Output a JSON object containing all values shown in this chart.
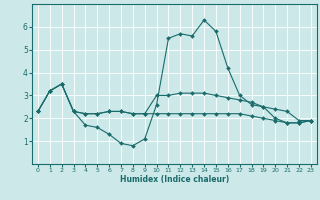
{
  "xlabel": "Humidex (Indice chaleur)",
  "background_color": "#cce8e8",
  "grid_color": "#ffffff",
  "line_color": "#1a6b6b",
  "x": [
    0,
    1,
    2,
    3,
    4,
    5,
    6,
    7,
    8,
    9,
    10,
    11,
    12,
    13,
    14,
    15,
    16,
    17,
    18,
    19,
    20,
    21,
    22,
    23
  ],
  "line1": [
    2.3,
    3.2,
    3.5,
    2.3,
    1.7,
    1.6,
    1.3,
    0.9,
    0.8,
    1.1,
    2.6,
    5.5,
    5.7,
    5.6,
    6.3,
    5.8,
    4.2,
    3.0,
    2.6,
    2.5,
    2.0,
    1.8,
    1.8,
    1.9
  ],
  "line2": [
    2.3,
    3.2,
    3.5,
    2.3,
    2.2,
    2.2,
    2.3,
    2.3,
    2.2,
    2.2,
    3.0,
    3.0,
    3.1,
    3.1,
    3.1,
    3.0,
    2.9,
    2.8,
    2.7,
    2.5,
    2.4,
    2.3,
    1.9,
    1.9
  ],
  "line3": [
    2.3,
    3.2,
    3.5,
    2.3,
    2.2,
    2.2,
    2.3,
    2.3,
    2.2,
    2.2,
    2.2,
    2.2,
    2.2,
    2.2,
    2.2,
    2.2,
    2.2,
    2.2,
    2.1,
    2.0,
    1.9,
    1.8,
    1.8,
    1.9
  ],
  "ylim": [
    0,
    7
  ],
  "xlim": [
    -0.5,
    23.5
  ],
  "yticks": [
    1,
    2,
    3,
    4,
    5,
    6
  ],
  "xticks": [
    0,
    1,
    2,
    3,
    4,
    5,
    6,
    7,
    8,
    9,
    10,
    11,
    12,
    13,
    14,
    15,
    16,
    17,
    18,
    19,
    20,
    21,
    22,
    23
  ]
}
